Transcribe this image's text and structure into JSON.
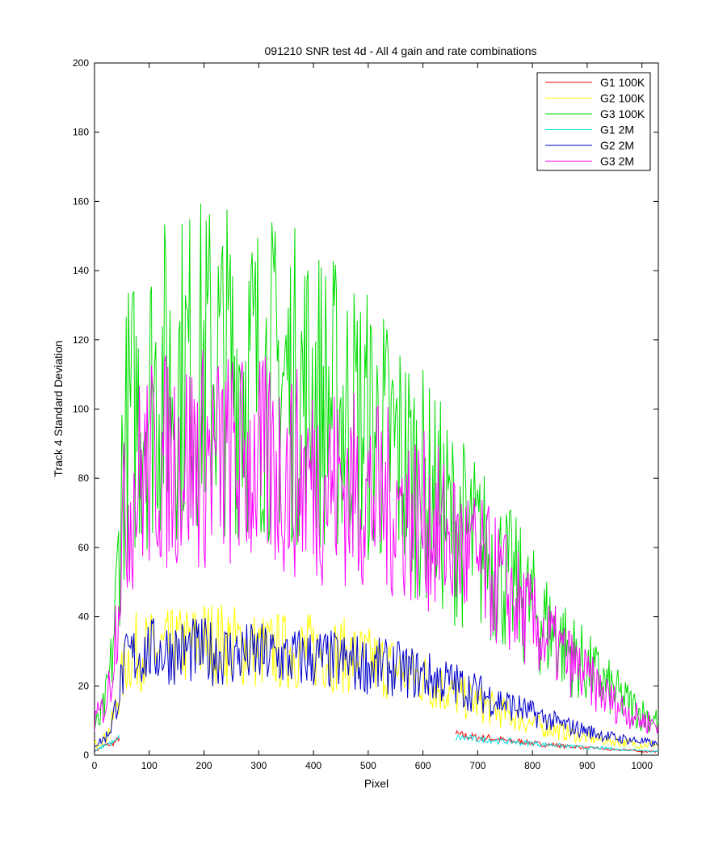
{
  "chart_data": {
    "type": "line",
    "title": "091210  SNR test 4d - All 4 gain and rate combinations",
    "xlabel": "Pixel",
    "ylabel": "Track 4 Standard Deviation",
    "xlim": [
      0,
      1030
    ],
    "ylim": [
      0,
      200
    ],
    "xticks": [
      0,
      100,
      200,
      300,
      400,
      500,
      600,
      700,
      800,
      900,
      1000
    ],
    "yticks": [
      0,
      20,
      40,
      60,
      80,
      100,
      120,
      140,
      160,
      180,
      200
    ],
    "grid": false,
    "legend_position": "top-right",
    "series": [
      {
        "name": "G1 100K",
        "color": "#ff0000",
        "segments": [
          {
            "x": [
              0,
              10,
              20,
              30,
              40,
              45
            ],
            "y": [
              1,
              2,
              3,
              3,
              4,
              5
            ]
          },
          {
            "x": [
              660,
              680,
              700,
              720,
              740,
              760,
              780,
              800,
              820,
              840,
              860,
              880,
              900,
              920,
              940,
              960,
              980,
              1000,
              1020,
              1030
            ],
            "y": [
              6,
              5.5,
              5,
              5,
              4.5,
              4,
              4,
              3.5,
              3,
              3,
              2.5,
              2.5,
              2,
              2,
              1.5,
              1.5,
              1.5,
              1,
              1,
              1
            ]
          }
        ]
      },
      {
        "name": "G2 100K",
        "color": "#ffff00",
        "segments": [
          {
            "x": [
              0,
              10,
              20,
              30,
              40,
              50,
              60,
              70,
              80,
              100,
              120,
              150,
              180,
              200,
              250,
              300,
              350,
              400,
              450,
              500,
              550,
              600,
              650,
              700,
              750,
              800,
              850,
              900,
              950,
              1000,
              1030
            ],
            "y": [
              3,
              4,
              5,
              8,
              15,
              22,
              28,
              30,
              30,
              30,
              30,
              31,
              32,
              33,
              32,
              30,
              30,
              30,
              29,
              27,
              25,
              22,
              18,
              15,
              12,
              9,
              7,
              5,
              4,
              3,
              3
            ]
          }
        ]
      },
      {
        "name": "G3 100K",
        "color": "#00dd00",
        "segments": [
          {
            "x": [
              0,
              10,
              20,
              30,
              40,
              50,
              60,
              80,
              100,
              120,
              150,
              180,
              200,
              250,
              300,
              350,
              400,
              450,
              500,
              550,
              600,
              650,
              700,
              750,
              800,
              850,
              900,
              950,
              1000,
              1030
            ],
            "y": [
              8,
              10,
              15,
              25,
              45,
              80,
              95,
              100,
              105,
              108,
              110,
              112,
              113,
              112,
              110,
              108,
              105,
              100,
              95,
              88,
              78,
              68,
              60,
              52,
              42,
              33,
              25,
              18,
              12,
              10
            ]
          }
        ]
      },
      {
        "name": "G1 2M",
        "color": "#00e5e5",
        "segments": [
          {
            "x": [
              0,
              10,
              20,
              30,
              40,
              45
            ],
            "y": [
              1,
              2,
              3,
              3.5,
              4,
              5
            ]
          },
          {
            "x": [
              660,
              680,
              700,
              720,
              740,
              760,
              780,
              800,
              820,
              840,
              860,
              880,
              900,
              920,
              940,
              960,
              980,
              1000,
              1020,
              1030
            ],
            "y": [
              5,
              5,
              4.5,
              4.5,
              4,
              4,
              3.5,
              3.5,
              3,
              3,
              2.5,
              2.5,
              2,
              2,
              2,
              1.5,
              1.5,
              1.5,
              1,
              1
            ]
          }
        ]
      },
      {
        "name": "G2 2M",
        "color": "#0000cc",
        "segments": [
          {
            "x": [
              0,
              10,
              20,
              30,
              40,
              50,
              60,
              80,
              100,
              150,
              200,
              250,
              300,
              350,
              400,
              450,
              500,
              550,
              600,
              650,
              700,
              750,
              800,
              850,
              900,
              950,
              1000,
              1030
            ],
            "y": [
              3,
              4,
              5,
              8,
              15,
              22,
              28,
              29,
              30,
              30,
              30,
              29,
              29,
              28,
              28,
              27,
              26,
              25,
              23,
              21,
              18,
              15,
              12,
              9,
              7,
              5,
              4,
              3
            ]
          }
        ]
      },
      {
        "name": "G3 2M",
        "color": "#ff00ff",
        "segments": [
          {
            "x": [
              0,
              10,
              20,
              30,
              40,
              50,
              60,
              80,
              100,
              150,
              200,
              250,
              300,
              350,
              400,
              450,
              500,
              550,
              600,
              650,
              700,
              750,
              800,
              850,
              900,
              950,
              1000,
              1030
            ],
            "y": [
              10,
              12,
              15,
              22,
              40,
              62,
              72,
              80,
              83,
              86,
              86,
              85,
              84,
              82,
              80,
              78,
              75,
              72,
              68,
              62,
              55,
              48,
              38,
              30,
              22,
              15,
              10,
              9
            ]
          }
        ]
      }
    ]
  }
}
